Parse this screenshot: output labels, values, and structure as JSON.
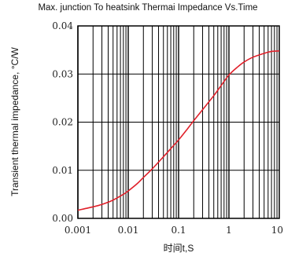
{
  "chart_data": {
    "type": "line",
    "title": "Max. junction To heatsink Thermai Impedance Vs.Time",
    "xlabel": "时间t,S",
    "ylabel": "Transient thermal impedance, °C/W",
    "xscale": "log",
    "xlim": [
      0.001,
      10
    ],
    "ylim": [
      0,
      0.04
    ],
    "x_ticks": [
      0.001,
      0.01,
      0.1,
      1,
      10
    ],
    "x_tick_labels": [
      "0.001",
      "0.01",
      "0.1",
      "1",
      "10"
    ],
    "y_ticks": [
      0,
      0.01,
      0.02,
      0.03,
      0.04
    ],
    "y_tick_labels": [
      "0.00",
      "0.01",
      "0.02",
      "0.03",
      "0.04"
    ],
    "grid": true,
    "series": [
      {
        "color": "#e0202a",
        "x": [
          0.001,
          0.002,
          0.003,
          0.005,
          0.008,
          0.01,
          0.015,
          0.02,
          0.03,
          0.05,
          0.07,
          0.1,
          0.15,
          0.2,
          0.3,
          0.5,
          0.7,
          1,
          1.5,
          2,
          3,
          5,
          7,
          10
        ],
        "y": [
          0.0017,
          0.0024,
          0.0029,
          0.0038,
          0.005,
          0.0057,
          0.0072,
          0.0085,
          0.0103,
          0.0128,
          0.0145,
          0.0163,
          0.0186,
          0.0203,
          0.0226,
          0.0255,
          0.0276,
          0.0298,
          0.0315,
          0.0325,
          0.0335,
          0.0343,
          0.0347,
          0.0348
        ]
      }
    ]
  }
}
